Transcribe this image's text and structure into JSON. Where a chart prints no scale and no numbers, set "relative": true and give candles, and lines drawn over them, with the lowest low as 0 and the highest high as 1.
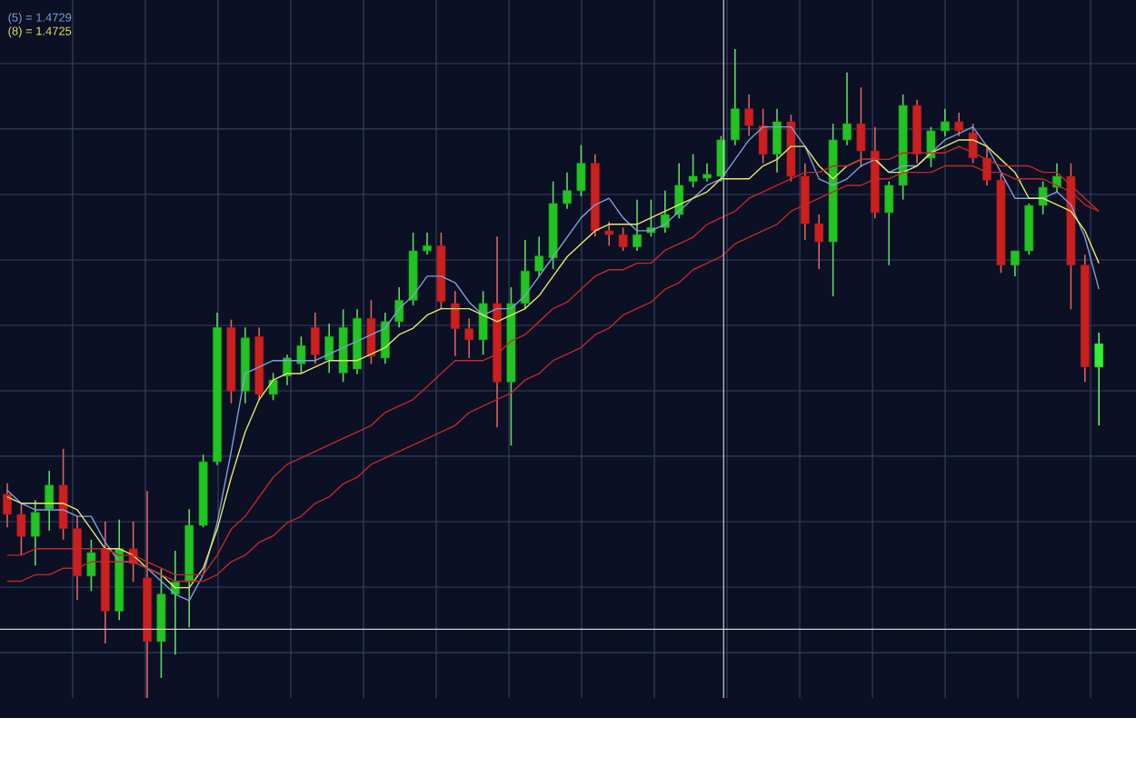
{
  "chart_data": {
    "type": "candlestick",
    "relative": true,
    "grid": true,
    "legend": "top left",
    "categories": [
      null,
      null,
      null,
      null,
      null,
      null,
      null,
      null,
      null,
      null,
      null,
      null,
      null,
      null,
      null,
      null,
      null,
      null,
      null,
      null,
      null,
      null,
      null,
      null,
      null,
      null,
      null,
      null,
      null,
      null,
      null,
      null,
      null,
      null,
      null,
      null,
      null,
      null,
      null,
      null,
      null,
      null,
      null,
      null,
      null,
      null,
      null,
      null,
      null,
      null,
      null,
      null,
      null,
      null,
      null,
      null,
      null,
      null,
      null,
      null,
      null,
      null,
      null,
      null,
      null,
      null,
      null,
      null,
      null,
      null,
      null,
      null,
      null,
      null,
      null,
      null,
      null,
      null,
      null
    ],
    "ohlc": [
      [
        0.314,
        0.331,
        0.263,
        0.283
      ],
      [
        0.283,
        0.3,
        0.221,
        0.249
      ],
      [
        0.249,
        0.305,
        0.204,
        0.286
      ],
      [
        0.291,
        0.35,
        0.258,
        0.328
      ],
      [
        0.328,
        0.384,
        0.244,
        0.261
      ],
      [
        0.261,
        0.28,
        0.151,
        0.188
      ],
      [
        0.188,
        0.244,
        0.165,
        0.224
      ],
      [
        0.23,
        0.272,
        0.084,
        0.134
      ],
      [
        0.134,
        0.275,
        0.12,
        0.23
      ],
      [
        0.23,
        0.272,
        0.179,
        0.207
      ],
      [
        0.185,
        0.319,
        0,
        0.087
      ],
      [
        0.087,
        0.199,
        0.031,
        0.16
      ],
      [
        0.16,
        0.227,
        0.067,
        0.179
      ],
      [
        0.179,
        0.291,
        0.109,
        0.266
      ],
      [
        0.266,
        0.375,
        0.263,
        0.364
      ],
      [
        0.364,
        0.594,
        0.359,
        0.571
      ],
      [
        0.571,
        0.583,
        0.454,
        0.473
      ],
      [
        0.473,
        0.571,
        0.454,
        0.555
      ],
      [
        0.557,
        0.571,
        0.459,
        0.468
      ],
      [
        0.468,
        0.501,
        0.459,
        0.49
      ],
      [
        0.496,
        0.529,
        0.482,
        0.524
      ],
      [
        0.515,
        0.557,
        0.501,
        0.543
      ],
      [
        0.571,
        0.594,
        0.515,
        0.529
      ],
      [
        0.521,
        0.577,
        0.501,
        0.557
      ],
      [
        0.501,
        0.599,
        0.487,
        0.571
      ],
      [
        0.507,
        0.599,
        0.499,
        0.585
      ],
      [
        0.585,
        0.613,
        0.515,
        0.527
      ],
      [
        0.524,
        0.594,
        0.515,
        0.58
      ],
      [
        0.58,
        0.633,
        0.571,
        0.613
      ],
      [
        0.613,
        0.717,
        0.605,
        0.689
      ],
      [
        0.689,
        0.717,
        0.683,
        0.697
      ],
      [
        0.697,
        0.717,
        0.599,
        0.611
      ],
      [
        0.608,
        0.627,
        0.527,
        0.569
      ],
      [
        0.569,
        0.585,
        0.524,
        0.552
      ],
      [
        0.552,
        0.627,
        0.529,
        0.608
      ],
      [
        0.608,
        0.711,
        0.417,
        0.487
      ],
      [
        0.487,
        0.633,
        0.389,
        0.608
      ],
      [
        0.608,
        0.706,
        0.599,
        0.658
      ],
      [
        0.658,
        0.711,
        0.65,
        0.681
      ],
      [
        0.678,
        0.796,
        0.661,
        0.762
      ],
      [
        0.762,
        0.81,
        0.754,
        0.782
      ],
      [
        0.782,
        0.852,
        0.773,
        0.824
      ],
      [
        0.824,
        0.838,
        0.711,
        0.72
      ],
      [
        0.72,
        0.734,
        0.697,
        0.714
      ],
      [
        0.714,
        0.725,
        0.689,
        0.695
      ],
      [
        0.695,
        0.768,
        0.689,
        0.714
      ],
      [
        0.717,
        0.768,
        0.711,
        0.725
      ],
      [
        0.725,
        0.782,
        0.717,
        0.745
      ],
      [
        0.745,
        0.824,
        0.739,
        0.79
      ],
      [
        0.796,
        0.838,
        0.787,
        0.804
      ],
      [
        0.801,
        0.824,
        0.796,
        0.807
      ],
      [
        0.804,
        0.866,
        0.796,
        0.86
      ],
      [
        0.86,
        1,
        0.852,
        0.908
      ],
      [
        0.908,
        0.93,
        0.866,
        0.882
      ],
      [
        0.882,
        0.908,
        0.824,
        0.838
      ],
      [
        0.838,
        0.908,
        0.81,
        0.888
      ],
      [
        0.888,
        0.899,
        0.796,
        0.804
      ],
      [
        0.804,
        0.824,
        0.706,
        0.731
      ],
      [
        0.731,
        0.745,
        0.661,
        0.703
      ],
      [
        0.703,
        0.885,
        0.619,
        0.86
      ],
      [
        0.86,
        0.964,
        0.852,
        0.885
      ],
      [
        0.885,
        0.941,
        0.818,
        0.843
      ],
      [
        0.843,
        0.88,
        0.739,
        0.748
      ],
      [
        0.748,
        0.796,
        0.667,
        0.79
      ],
      [
        0.79,
        0.93,
        0.768,
        0.913
      ],
      [
        0.913,
        0.922,
        0.824,
        0.838
      ],
      [
        0.832,
        0.88,
        0.818,
        0.874
      ],
      [
        0.874,
        0.908,
        0.866,
        0.888
      ],
      [
        0.888,
        0.902,
        0.866,
        0.874
      ],
      [
        0.871,
        0.885,
        0.824,
        0.832
      ],
      [
        0.832,
        0.852,
        0.79,
        0.798
      ],
      [
        0.798,
        0.81,
        0.655,
        0.667
      ],
      [
        0.667,
        0.689,
        0.65,
        0.689
      ],
      [
        0.689,
        0.762,
        0.683,
        0.759
      ],
      [
        0.759,
        0.796,
        0.745,
        0.787
      ],
      [
        0.787,
        0.824,
        0.779,
        0.804
      ],
      [
        0.804,
        0.824,
        0.599,
        0.667
      ],
      [
        0.667,
        0.683,
        0.487,
        0.51
      ],
      [
        0.51,
        0.563,
        0.42,
        0.546
      ]
    ],
    "colors": [
      "#cc1f1f",
      "#cc1f1f",
      "#22c422",
      "#22c422",
      "#cc1f1f",
      "#cc1f1f",
      "#22c422",
      "#cc1f1f",
      "#22c422",
      "#cc1f1f",
      "#cc1f1f",
      "#22c422",
      "#22c422",
      "#22c422",
      "#22c422",
      "#22c422",
      "#cc1f1f",
      "#22c422",
      "#cc1f1f",
      "#22c422",
      "#22c422",
      "#22c422",
      "#cc1f1f",
      "#22c422",
      "#22c422",
      "#22c422",
      "#cc1f1f",
      "#22c422",
      "#22c422",
      "#22c422",
      "#22c422",
      "#cc1f1f",
      "#cc1f1f",
      "#cc1f1f",
      "#22c422",
      "#cc1f1f",
      "#22c422",
      "#22c422",
      "#22c422",
      "#22c422",
      "#22c422",
      "#22c422",
      "#cc1f1f",
      "#cc1f1f",
      "#cc1f1f",
      "#22c422",
      "#22c422",
      "#22c422",
      "#22c422",
      "#22c422",
      "#22c422",
      "#22c422",
      "#22c422",
      "#cc1f1f",
      "#cc1f1f",
      "#22c422",
      "#cc1f1f",
      "#cc1f1f",
      "#cc1f1f",
      "#22c422",
      "#22c422",
      "#cc1f1f",
      "#cc1f1f",
      "#22c422",
      "#22c422",
      "#cc1f1f",
      "#22c422",
      "#22c422",
      "#cc1f1f",
      "#cc1f1f",
      "#cc1f1f",
      "#cc1f1f",
      "#22c422",
      "#22c422",
      "#22c422",
      "#22c422",
      "#cc1f1f",
      "#cc1f1f",
      "#33ee33"
    ],
    "series": [
      {
        "type": "line",
        "name": "(5) = 1.4729",
        "color": "#7f9fd8",
        "values": [
          0.32,
          0.3,
          0.29,
          0.29,
          0.29,
          0.28,
          0.28,
          0.24,
          0.21,
          0.21,
          0.2,
          0.18,
          0.16,
          0.15,
          0.19,
          0.27,
          0.38,
          0.5,
          0.51,
          0.52,
          0.52,
          0.52,
          0.52,
          0.53,
          0.54,
          0.55,
          0.56,
          0.57,
          0.6,
          0.62,
          0.65,
          0.65,
          0.64,
          0.61,
          0.59,
          0.6,
          0.6,
          0.62,
          0.65,
          0.68,
          0.71,
          0.74,
          0.76,
          0.77,
          0.74,
          0.72,
          0.72,
          0.73,
          0.75,
          0.77,
          0.79,
          0.8,
          0.83,
          0.86,
          0.88,
          0.88,
          0.88,
          0.85,
          0.8,
          0.79,
          0.8,
          0.82,
          0.83,
          0.81,
          0.82,
          0.82,
          0.84,
          0.86,
          0.87,
          0.88,
          0.85,
          0.81,
          0.77,
          0.77,
          0.77,
          0.78,
          0.76,
          0.71,
          0.63
        ]
      },
      {
        "type": "line",
        "name": "(8) = 1.4725",
        "color": "#e8e86a",
        "values": [
          0.31,
          0.3,
          0.3,
          0.3,
          0.3,
          0.29,
          0.26,
          0.23,
          0.23,
          0.22,
          0.2,
          0.19,
          0.17,
          0.17,
          0.2,
          0.26,
          0.34,
          0.41,
          0.46,
          0.49,
          0.5,
          0.5,
          0.51,
          0.52,
          0.52,
          0.52,
          0.53,
          0.54,
          0.56,
          0.57,
          0.59,
          0.6,
          0.6,
          0.6,
          0.59,
          0.58,
          0.59,
          0.6,
          0.62,
          0.65,
          0.68,
          0.7,
          0.72,
          0.73,
          0.73,
          0.73,
          0.74,
          0.75,
          0.76,
          0.77,
          0.78,
          0.8,
          0.8,
          0.8,
          0.82,
          0.83,
          0.85,
          0.85,
          0.82,
          0.8,
          0.82,
          0.83,
          0.83,
          0.81,
          0.81,
          0.82,
          0.84,
          0.85,
          0.86,
          0.86,
          0.85,
          0.83,
          0.81,
          0.77,
          0.77,
          0.76,
          0.75,
          0.72,
          0.67
        ]
      },
      {
        "type": "line",
        "color": "#c0282a",
        "values": [
          0.22,
          0.22,
          0.23,
          0.23,
          0.23,
          0.23,
          0.23,
          0.23,
          0.22,
          0.22,
          0.21,
          0.2,
          0.19,
          0.19,
          0.19,
          0.22,
          0.26,
          0.28,
          0.31,
          0.34,
          0.36,
          0.37,
          0.38,
          0.39,
          0.4,
          0.41,
          0.42,
          0.44,
          0.45,
          0.46,
          0.48,
          0.5,
          0.52,
          0.52,
          0.52,
          0.53,
          0.55,
          0.56,
          0.58,
          0.6,
          0.61,
          0.63,
          0.65,
          0.66,
          0.66,
          0.67,
          0.67,
          0.69,
          0.7,
          0.71,
          0.73,
          0.74,
          0.75,
          0.77,
          0.78,
          0.79,
          0.8,
          0.81,
          0.81,
          0.82,
          0.82,
          0.83,
          0.83,
          0.83,
          0.84,
          0.84,
          0.84,
          0.84,
          0.85,
          0.84,
          0.83,
          0.82,
          0.82,
          0.82,
          0.81,
          0.81,
          0.79,
          0.77,
          0.75
        ]
      },
      {
        "type": "line",
        "color": "#c0282a",
        "values": [
          0.18,
          0.18,
          0.19,
          0.19,
          0.2,
          0.2,
          0.21,
          0.21,
          0.21,
          0.21,
          0.2,
          0.19,
          0.18,
          0.18,
          0.18,
          0.19,
          0.21,
          0.22,
          0.24,
          0.25,
          0.27,
          0.28,
          0.3,
          0.31,
          0.33,
          0.34,
          0.36,
          0.37,
          0.38,
          0.39,
          0.4,
          0.41,
          0.42,
          0.44,
          0.45,
          0.46,
          0.47,
          0.49,
          0.5,
          0.52,
          0.53,
          0.54,
          0.56,
          0.57,
          0.59,
          0.6,
          0.61,
          0.63,
          0.64,
          0.66,
          0.67,
          0.68,
          0.7,
          0.71,
          0.72,
          0.73,
          0.75,
          0.76,
          0.77,
          0.78,
          0.79,
          0.79,
          0.8,
          0.8,
          0.81,
          0.81,
          0.81,
          0.82,
          0.82,
          0.82,
          0.81,
          0.81,
          0.8,
          0.8,
          0.8,
          0.79,
          0.78,
          0.76,
          0.75
        ]
      }
    ],
    "ref_lines": [
      {
        "axis": "y",
        "value": 0.106,
        "color": "#d0d0d0"
      }
    ]
  }
}
